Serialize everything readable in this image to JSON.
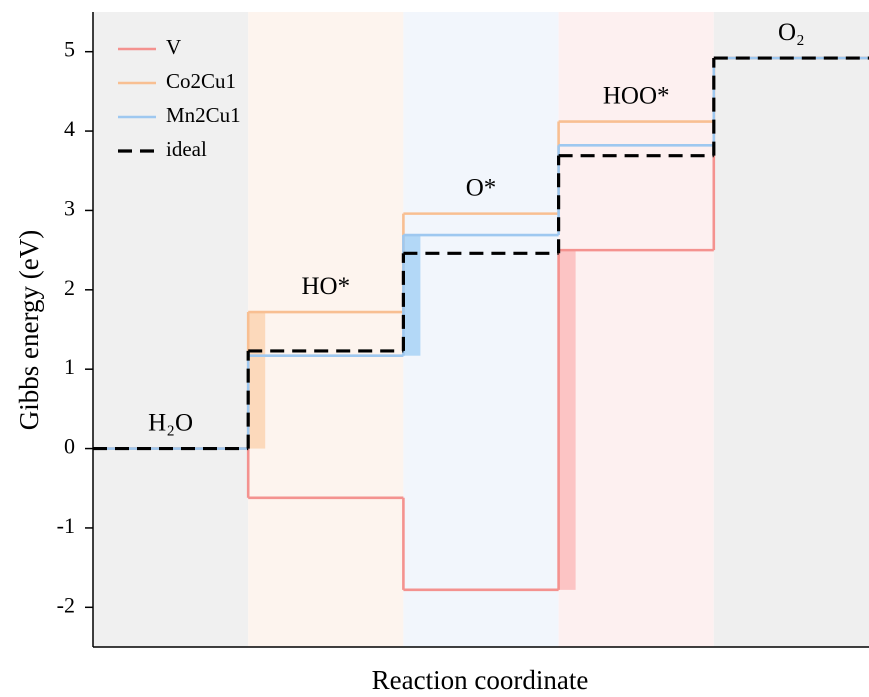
{
  "chart_data": {
    "type": "step",
    "y_label": "Gibbs energy (eV)",
    "x_label": "Reaction coordinate",
    "categories": [
      "H₂O",
      "HO*",
      "O*",
      "HOO*",
      "O₂"
    ],
    "band_colors": [
      "#f0f0f0",
      "#fdf4ee",
      "#f2f6fc",
      "#fdf0f0",
      "#efefef"
    ],
    "series": [
      {
        "name": "V",
        "color": "#f4928f",
        "highlight_color": "#fbbcbc",
        "pds": 3,
        "values": [
          0,
          -0.62,
          -1.78,
          2.5,
          4.92
        ]
      },
      {
        "name": "Co2Cu1",
        "color": "#f8bf92",
        "highlight_color": "#fcd4b2",
        "pds": 1,
        "values": [
          0,
          1.72,
          2.96,
          4.12,
          4.92
        ]
      },
      {
        "name": "Mn2Cu1",
        "color": "#9ec8f0",
        "highlight_color": "#a8d2f6",
        "pds": 2,
        "values": [
          0,
          1.17,
          2.69,
          3.82,
          4.92
        ]
      },
      {
        "name": "ideal",
        "color": "#000000",
        "dashed": true,
        "values": [
          0,
          1.23,
          2.46,
          3.69,
          4.92
        ]
      }
    ],
    "ylim": [
      -2.5,
      5.5
    ],
    "yticks": [
      -2,
      -1,
      0,
      1,
      2,
      3,
      4,
      5
    ],
    "legend": "top-left"
  }
}
